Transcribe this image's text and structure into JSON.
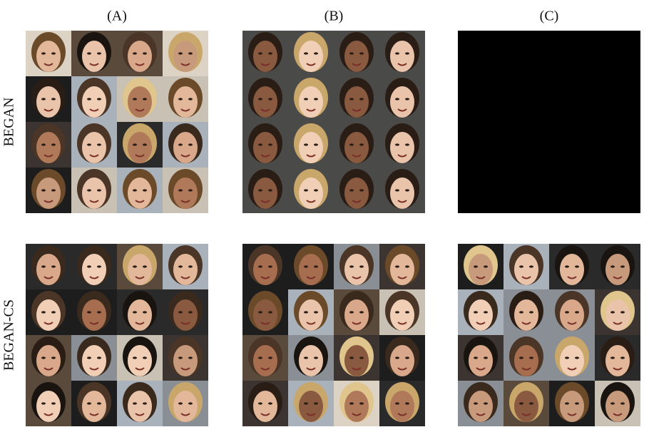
{
  "column_labels": [
    "(A)",
    "(B)",
    "(C)"
  ],
  "row_labels": [
    "BEGAN",
    "BEGAN-CS"
  ]
}
